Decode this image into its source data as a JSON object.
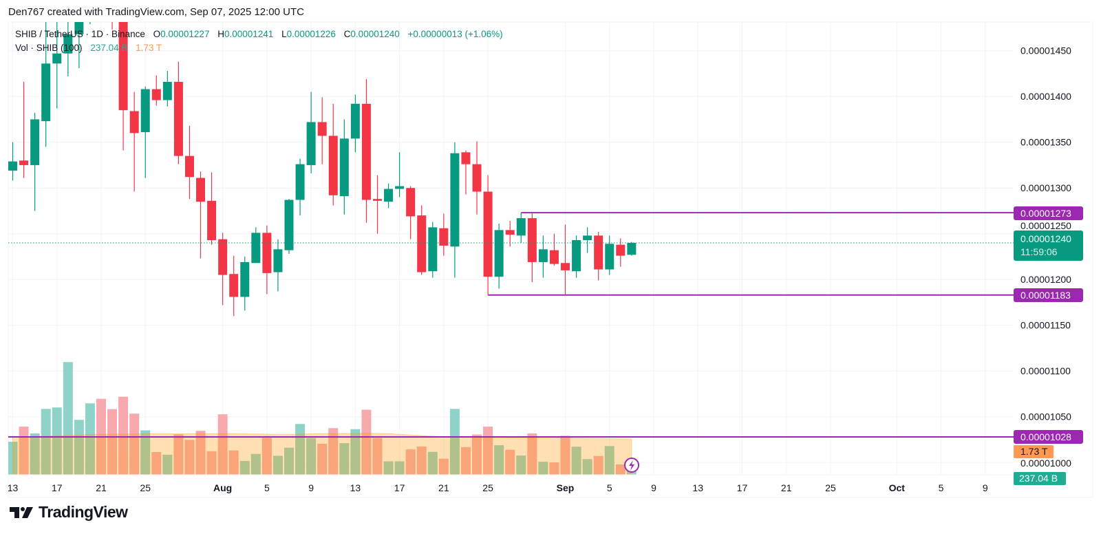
{
  "header": {
    "attribution": "Den767 created with TradingView.com, Sep 07, 2025 12:00 UTC"
  },
  "legend": {
    "symbol": "SHIB / TetherUS · 1D · Binance",
    "o_label": "O",
    "o_value": "0.00001227",
    "h_label": "H",
    "h_value": "0.00001241",
    "l_label": "L",
    "l_value": "0.00001226",
    "c_label": "C",
    "c_value": "0.00001240",
    "change": "+0.00000013 (+1.06%)",
    "vol_label": "Vol · SHIB (100)",
    "vol_value": "237.04 B",
    "vol_ma_value": "1.73 T"
  },
  "price_labels": {
    "resistance": "0.00001273",
    "current": "0.00001240",
    "countdown": "11:59:06",
    "support": "0.00001183",
    "lower_level": "0.00001028",
    "vol_ma": "1.73 T",
    "volume": "237.04 B"
  },
  "brand": {
    "name": "TradingView"
  },
  "colors": {
    "up": "#089981",
    "down": "#F23645",
    "level": "#9C27B0",
    "vol_up": "#8fd3c8",
    "vol_down": "#f7a9ae",
    "ma_area": "#ffcfa6",
    "grid": "#f0f3fa"
  },
  "chart_data": {
    "type": "candlestick",
    "title": "SHIB / TetherUS · 1D · Binance",
    "x_ticks": [
      {
        "label": "13",
        "date": "2025-07-13"
      },
      {
        "label": "17",
        "date": "2025-07-17"
      },
      {
        "label": "21",
        "date": "2025-07-21"
      },
      {
        "label": "25",
        "date": "2025-07-25"
      },
      {
        "label": "Aug",
        "date": "2025-08-01",
        "bold": true
      },
      {
        "label": "5",
        "date": "2025-08-05"
      },
      {
        "label": "9",
        "date": "2025-08-09"
      },
      {
        "label": "13",
        "date": "2025-08-13"
      },
      {
        "label": "17",
        "date": "2025-08-17"
      },
      {
        "label": "21",
        "date": "2025-08-21"
      },
      {
        "label": "25",
        "date": "2025-08-25"
      },
      {
        "label": "Sep",
        "date": "2025-09-01",
        "bold": true
      },
      {
        "label": "5",
        "date": "2025-09-05"
      },
      {
        "label": "9",
        "date": "2025-09-09"
      },
      {
        "label": "13",
        "date": "2025-09-13"
      },
      {
        "label": "17",
        "date": "2025-09-17"
      },
      {
        "label": "21",
        "date": "2025-09-21"
      },
      {
        "label": "25",
        "date": "2025-09-25"
      },
      {
        "label": "Oct",
        "date": "2025-10-01",
        "bold": true
      },
      {
        "label": "5",
        "date": "2025-10-05"
      },
      {
        "label": "9",
        "date": "2025-10-09"
      }
    ],
    "y_ticks": [
      {
        "label": "0.00001450",
        "value": 1.45e-05
      },
      {
        "label": "0.00001400",
        "value": 1.4e-05
      },
      {
        "label": "0.00001350",
        "value": 1.35e-05
      },
      {
        "label": "0.00001300",
        "value": 1.3e-05
      },
      {
        "label": "0.00001250",
        "value": 1.25e-05
      },
      {
        "label": "0.00001200",
        "value": 1.2e-05
      },
      {
        "label": "0.00001150",
        "value": 1.15e-05
      },
      {
        "label": "0.00001100",
        "value": 1.1e-05
      },
      {
        "label": "0.00001050",
        "value": 1.05e-05
      },
      {
        "label": "0.00001000",
        "value": 1e-05
      }
    ],
    "levels": [
      {
        "name": "resistance",
        "value": 1.273e-05,
        "from": "2025-08-28"
      },
      {
        "name": "support",
        "value": 1.183e-05,
        "from": "2025-08-25"
      },
      {
        "name": "lower-level",
        "value": 1.028e-05,
        "from": "2025-07-12"
      }
    ],
    "current_price": 1.24e-05,
    "volume_unit": "B",
    "candles_columns": [
      "date",
      "open",
      "high",
      "low",
      "close",
      "volume"
    ],
    "candles": [
      [
        "2025-07-13",
        1.319e-05,
        1.35e-05,
        1.308e-05,
        1.329e-05,
        1600
      ],
      [
        "2025-07-14",
        1.33e-05,
        1.416e-05,
        1.311e-05,
        1.325e-05,
        2330
      ],
      [
        "2025-07-15",
        1.325e-05,
        1.382e-05,
        1.275e-05,
        1.375e-05,
        2000
      ],
      [
        "2025-07-16",
        1.373e-05,
        1.5e-05,
        1.345e-05,
        1.436e-05,
        3190
      ],
      [
        "2025-07-17",
        1.436e-05,
        1.49e-05,
        1.387e-05,
        1.447e-05,
        3260
      ],
      [
        "2025-07-18",
        1.447e-05,
        1.5e-05,
        1.422e-05,
        1.468e-05,
        5460
      ],
      [
        "2025-07-19",
        1.468e-05,
        1.51e-05,
        1.431e-05,
        1.495e-05,
        2660
      ],
      [
        "2025-07-20",
        1.495e-05,
        1.515e-05,
        1.479e-05,
        1.505e-05,
        3460
      ],
      [
        "2025-07-21",
        1.505e-05,
        1.52e-05,
        1.485e-05,
        1.5e-05,
        3680
      ],
      [
        "2025-07-22",
        1.5e-05,
        1.51e-05,
        1.473e-05,
        1.49e-05,
        3180
      ],
      [
        "2025-07-23",
        1.49e-05,
        1.495e-05,
        1.341e-05,
        1.385e-05,
        3780
      ],
      [
        "2025-07-24",
        1.384e-05,
        1.405e-05,
        1.296e-05,
        1.36e-05,
        2960
      ],
      [
        "2025-07-25",
        1.361e-05,
        1.411e-05,
        1.311e-05,
        1.408e-05,
        2150
      ],
      [
        "2025-07-26",
        1.408e-05,
        1.423e-05,
        1.39e-05,
        1.396e-05,
        1100
      ],
      [
        "2025-07-27",
        1.396e-05,
        1.428e-05,
        1.389e-05,
        1.416e-05,
        970
      ],
      [
        "2025-07-28",
        1.416e-05,
        1.438e-05,
        1.326e-05,
        1.335e-05,
        1960
      ],
      [
        "2025-07-29",
        1.335e-05,
        1.368e-05,
        1.288e-05,
        1.312e-05,
        1690
      ],
      [
        "2025-07-30",
        1.311e-05,
        1.318e-05,
        1.223e-05,
        1.285e-05,
        2130
      ],
      [
        "2025-07-31",
        1.286e-05,
        1.317e-05,
        1.238e-05,
        1.243e-05,
        1140
      ],
      [
        "2025-08-01",
        1.244e-05,
        1.251e-05,
        1.172e-05,
        1.205e-05,
        2930
      ],
      [
        "2025-08-02",
        1.206e-05,
        1.226e-05,
        1.16e-05,
        1.181e-05,
        1180
      ],
      [
        "2025-08-03",
        1.181e-05,
        1.225e-05,
        1.166e-05,
        1.219e-05,
        670
      ],
      [
        "2025-08-04",
        1.218e-05,
        1.257e-05,
        1.218e-05,
        1.251e-05,
        1010
      ],
      [
        "2025-08-05",
        1.251e-05,
        1.259e-05,
        1.184e-05,
        1.207e-05,
        1790
      ],
      [
        "2025-08-06",
        1.208e-05,
        1.244e-05,
        1.187e-05,
        1.233e-05,
        920
      ],
      [
        "2025-08-07",
        1.232e-05,
        1.288e-05,
        1.228e-05,
        1.287e-05,
        1310
      ],
      [
        "2025-08-08",
        1.287e-05,
        1.332e-05,
        1.27e-05,
        1.326e-05,
        2460
      ],
      [
        "2025-08-09",
        1.325e-05,
        1.405e-05,
        1.316e-05,
        1.372e-05,
        1780
      ],
      [
        "2025-08-10",
        1.372e-05,
        1.399e-05,
        1.326e-05,
        1.357e-05,
        1500
      ],
      [
        "2025-08-11",
        1.357e-05,
        1.392e-05,
        1.281e-05,
        1.292e-05,
        2260
      ],
      [
        "2025-08-12",
        1.291e-05,
        1.375e-05,
        1.271e-05,
        1.354e-05,
        1530
      ],
      [
        "2025-08-13",
        1.354e-05,
        1.402e-05,
        1.339e-05,
        1.392e-05,
        2210
      ],
      [
        "2025-08-14",
        1.392e-05,
        1.419e-05,
        1.262e-05,
        1.287e-05,
        3150
      ],
      [
        "2025-08-15",
        1.288e-05,
        1.314e-05,
        1.25e-05,
        1.286e-05,
        1780
      ],
      [
        "2025-08-16",
        1.285e-05,
        1.305e-05,
        1.278e-05,
        1.299e-05,
        650
      ],
      [
        "2025-08-17",
        1.299e-05,
        1.339e-05,
        1.29e-05,
        1.302e-05,
        650
      ],
      [
        "2025-08-18",
        1.3e-05,
        1.302e-05,
        1.244e-05,
        1.269e-05,
        1230
      ],
      [
        "2025-08-19",
        1.27e-05,
        1.281e-05,
        1.205e-05,
        1.208e-05,
        1370
      ],
      [
        "2025-08-20",
        1.209e-05,
        1.263e-05,
        1.202e-05,
        1.257e-05,
        1110
      ],
      [
        "2025-08-21",
        1.256e-05,
        1.272e-05,
        1.226e-05,
        1.237e-05,
        780
      ],
      [
        "2025-08-22",
        1.236e-05,
        1.35e-05,
        1.202e-05,
        1.338e-05,
        3190
      ],
      [
        "2025-08-23",
        1.339e-05,
        1.341e-05,
        1.293e-05,
        1.326e-05,
        1340
      ],
      [
        "2025-08-24",
        1.326e-05,
        1.351e-05,
        1.271e-05,
        1.296e-05,
        1950
      ],
      [
        "2025-08-25",
        1.296e-05,
        1.314e-05,
        1.183e-05,
        1.203e-05,
        2330
      ],
      [
        "2025-08-26",
        1.203e-05,
        1.261e-05,
        1.19e-05,
        1.254e-05,
        1430
      ],
      [
        "2025-08-27",
        1.254e-05,
        1.264e-05,
        1.236e-05,
        1.249e-05,
        1210
      ],
      [
        "2025-08-28",
        1.248e-05,
        1.273e-05,
        1.24e-05,
        1.267e-05,
        930
      ],
      [
        "2025-08-29",
        1.267e-05,
        1.272e-05,
        1.197e-05,
        1.219e-05,
        2000
      ],
      [
        "2025-08-30",
        1.219e-05,
        1.248e-05,
        1.202e-05,
        1.233e-05,
        630
      ],
      [
        "2025-08-31",
        1.232e-05,
        1.25e-05,
        1.215e-05,
        1.217e-05,
        600
      ],
      [
        "2025-09-01",
        1.218e-05,
        1.26e-05,
        1.183e-05,
        1.21e-05,
        1890
      ],
      [
        "2025-09-02",
        1.209e-05,
        1.248e-05,
        1.202e-05,
        1.243e-05,
        1360
      ],
      [
        "2025-09-03",
        1.243e-05,
        1.257e-05,
        1.229e-05,
        1.248e-05,
        760
      ],
      [
        "2025-09-04",
        1.248e-05,
        1.252e-05,
        1.199e-05,
        1.211e-05,
        910
      ],
      [
        "2025-09-05",
        1.211e-05,
        1.248e-05,
        1.205e-05,
        1.239e-05,
        1390
      ],
      [
        "2025-09-06",
        1.238e-05,
        1.245e-05,
        1.214e-05,
        1.226e-05,
        500
      ],
      [
        "2025-09-07",
        1.227e-05,
        1.241e-05,
        1.226e-05,
        1.24e-05,
        237.04
      ]
    ],
    "volume_ma": [
      1830,
      1840,
      1850,
      1870,
      1890,
      1910,
      1930,
      1950,
      1960,
      1970,
      1975,
      1980,
      1985,
      1985,
      1985,
      1985,
      1990,
      1990,
      1990,
      1995,
      1990,
      1985,
      1980,
      1970,
      1960,
      1960,
      1970,
      1985,
      1995,
      2000,
      2005,
      2005,
      2010,
      2005,
      1995,
      1960,
      1930,
      1900,
      1870,
      1845,
      1830,
      1820,
      1815,
      1810,
      1800,
      1795,
      1790,
      1785,
      1780,
      1775,
      1770,
      1765,
      1760,
      1755,
      1750,
      1740,
      1730
    ]
  }
}
